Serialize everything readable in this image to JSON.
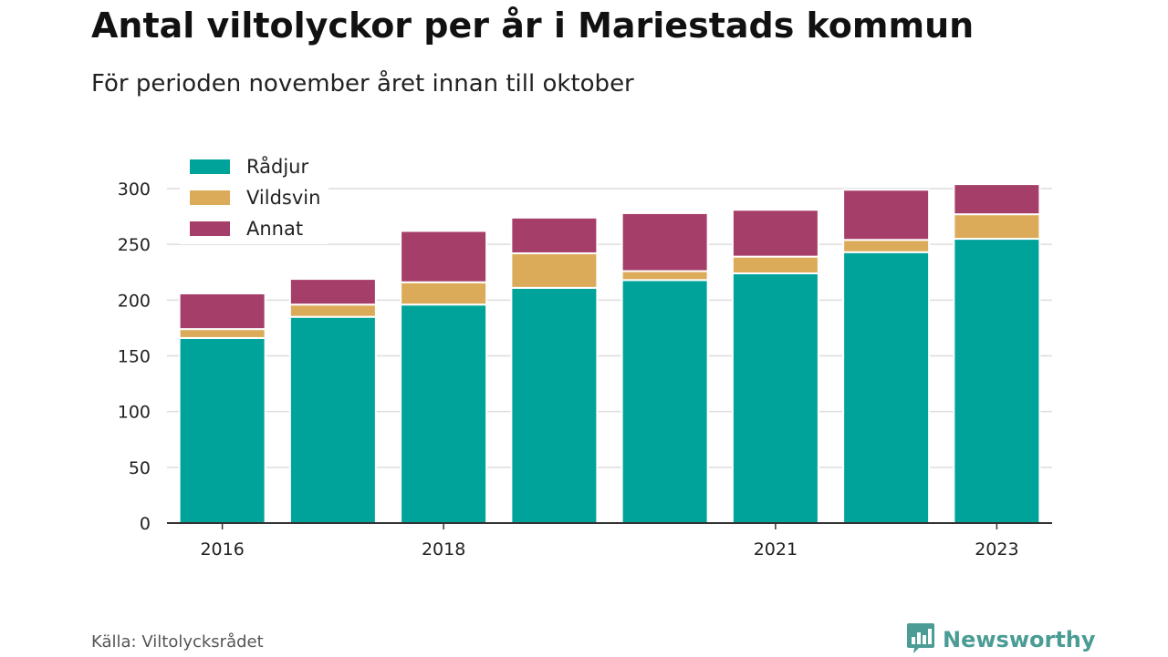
{
  "header": {
    "title": "Antal viltolyckor per år i Mariestads kommun",
    "subtitle": "För perioden november året innan till oktober"
  },
  "footer": {
    "source": "Källa: Viltolycksrådet",
    "brand": "Newsworthy",
    "brand_icon": "bar-chart-speech-bubble-icon"
  },
  "colors": {
    "radjur": "#00a39a",
    "vildsvin": "#dcab59",
    "annat": "#a53e68",
    "grid": "#dddddd",
    "axis": "#333333",
    "brand": "#4a9c94"
  },
  "chart_data": {
    "type": "bar",
    "stacked": true,
    "title": "Antal viltolyckor per år i Mariestads kommun",
    "subtitle": "För perioden november året innan till oktober",
    "categories": [
      "2016",
      "2017",
      "2018",
      "2019",
      "2020",
      "2021",
      "2022",
      "2023"
    ],
    "x_tick_labels": [
      "2016",
      "",
      "2018",
      "",
      "",
      "2021",
      "",
      "2023"
    ],
    "series": [
      {
        "name": "Rådjur",
        "color": "#00a39a",
        "values": [
          166,
          185,
          196,
          211,
          218,
          224,
          243,
          255
        ]
      },
      {
        "name": "Vildsvin",
        "color": "#dcab59",
        "values": [
          8,
          11,
          20,
          31,
          8,
          15,
          11,
          22
        ]
      },
      {
        "name": "Annat",
        "color": "#a53e68",
        "values": [
          32,
          23,
          46,
          32,
          52,
          42,
          45,
          27
        ]
      }
    ],
    "ylim": [
      0,
      300
    ],
    "yticks": [
      "0",
      "50",
      "100",
      "150",
      "200",
      "250",
      "300"
    ],
    "xlabel": "",
    "ylabel": "",
    "grid": "horizontal",
    "legend_position": "top-left"
  }
}
